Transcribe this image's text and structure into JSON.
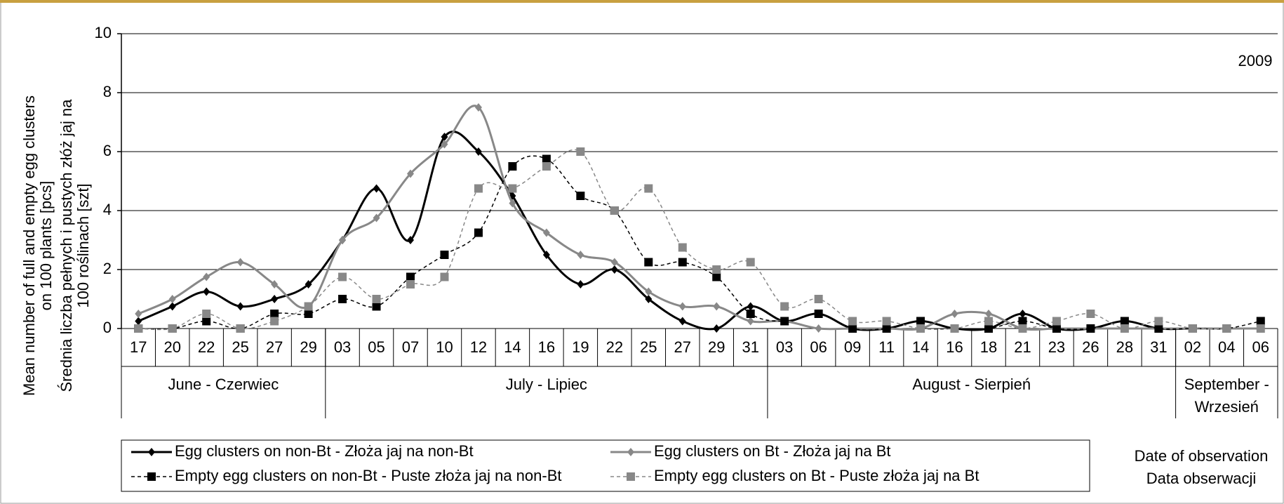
{
  "chart_data": {
    "type": "line",
    "annotation": "2009",
    "ylabel": [
      "Mean number of full and empty egg clusters",
      "on 100 plants [pcs]",
      "Średnia liczba pełnych i pustych złóż jaj na",
      "100 roślinach [szt]"
    ],
    "xlabel": [
      "Date of observation",
      "Data obserwacji"
    ],
    "months": [
      {
        "name": "June - Czerwiec",
        "days": [
          "17",
          "20",
          "22",
          "25",
          "27",
          "29"
        ]
      },
      {
        "name": "July - Lipiec",
        "days": [
          "03",
          "05",
          "07",
          "10",
          "12",
          "14",
          "16",
          "19",
          "22",
          "25",
          "27",
          "29",
          "31"
        ]
      },
      {
        "name": "August - Sierpień",
        "days": [
          "03",
          "06",
          "09",
          "11",
          "14",
          "16",
          "18",
          "21",
          "23",
          "26",
          "28",
          "31"
        ]
      },
      {
        "name": "September - Wrzesień",
        "days": [
          "02",
          "04",
          "06"
        ]
      }
    ],
    "ylim": [
      0,
      10
    ],
    "yticks": [
      0,
      2,
      4,
      6,
      8,
      10
    ],
    "grid": true,
    "smooth": true,
    "series": [
      {
        "name": "Egg clusters on non-Bt - Złoża jaj na non-Bt",
        "color": "#000000",
        "line_style": "solid",
        "marker": "diamond",
        "values": [
          0.25,
          0.75,
          1.25,
          0.75,
          1.0,
          1.5,
          3.0,
          4.75,
          3.0,
          6.5,
          6.0,
          4.5,
          2.5,
          1.5,
          2.0,
          1.0,
          0.25,
          0,
          0.75,
          0.25,
          0.5,
          0,
          0,
          0.25,
          0,
          0,
          0.5,
          0,
          0,
          0.25,
          0,
          0,
          0,
          0
        ]
      },
      {
        "name": "Egg clusters on Bt - Złoża jaj na Bt",
        "color": "#888888",
        "line_style": "solid",
        "marker": "diamond",
        "values": [
          0.5,
          1.0,
          1.75,
          2.25,
          1.5,
          0.75,
          3.0,
          3.75,
          5.25,
          6.25,
          7.5,
          4.25,
          3.25,
          2.5,
          2.25,
          1.25,
          0.75,
          0.75,
          0.25,
          0.25,
          0,
          0,
          0,
          0,
          0.5,
          0.5,
          0,
          0,
          0,
          0,
          0,
          0,
          0,
          0
        ]
      },
      {
        "name": "Empty egg clusters on non-Bt - Puste złoża jaj na non-Bt",
        "color": "#000000",
        "line_style": "dashed",
        "marker": "square",
        "values": [
          0,
          0,
          0.25,
          0,
          0.5,
          0.5,
          1.0,
          0.75,
          1.75,
          2.5,
          3.25,
          5.5,
          5.75,
          4.5,
          4.0,
          2.25,
          2.25,
          1.75,
          0.5,
          0.25,
          0.5,
          0,
          0,
          0.25,
          0,
          0,
          0.25,
          0,
          0,
          0.25,
          0,
          0,
          0,
          0.25
        ]
      },
      {
        "name": "Empty egg clusters on Bt - Puste złoża jaj na Bt",
        "color": "#888888",
        "line_style": "dashed",
        "marker": "square",
        "values": [
          0,
          0,
          0.5,
          0,
          0.25,
          0.75,
          1.75,
          1.0,
          1.5,
          1.75,
          4.75,
          4.75,
          5.5,
          6.0,
          4.0,
          4.75,
          2.75,
          2.0,
          2.25,
          0.75,
          1.0,
          0.25,
          0.25,
          0,
          0,
          0.25,
          0,
          0.25,
          0.5,
          0,
          0.25,
          0,
          0,
          0
        ]
      }
    ]
  }
}
